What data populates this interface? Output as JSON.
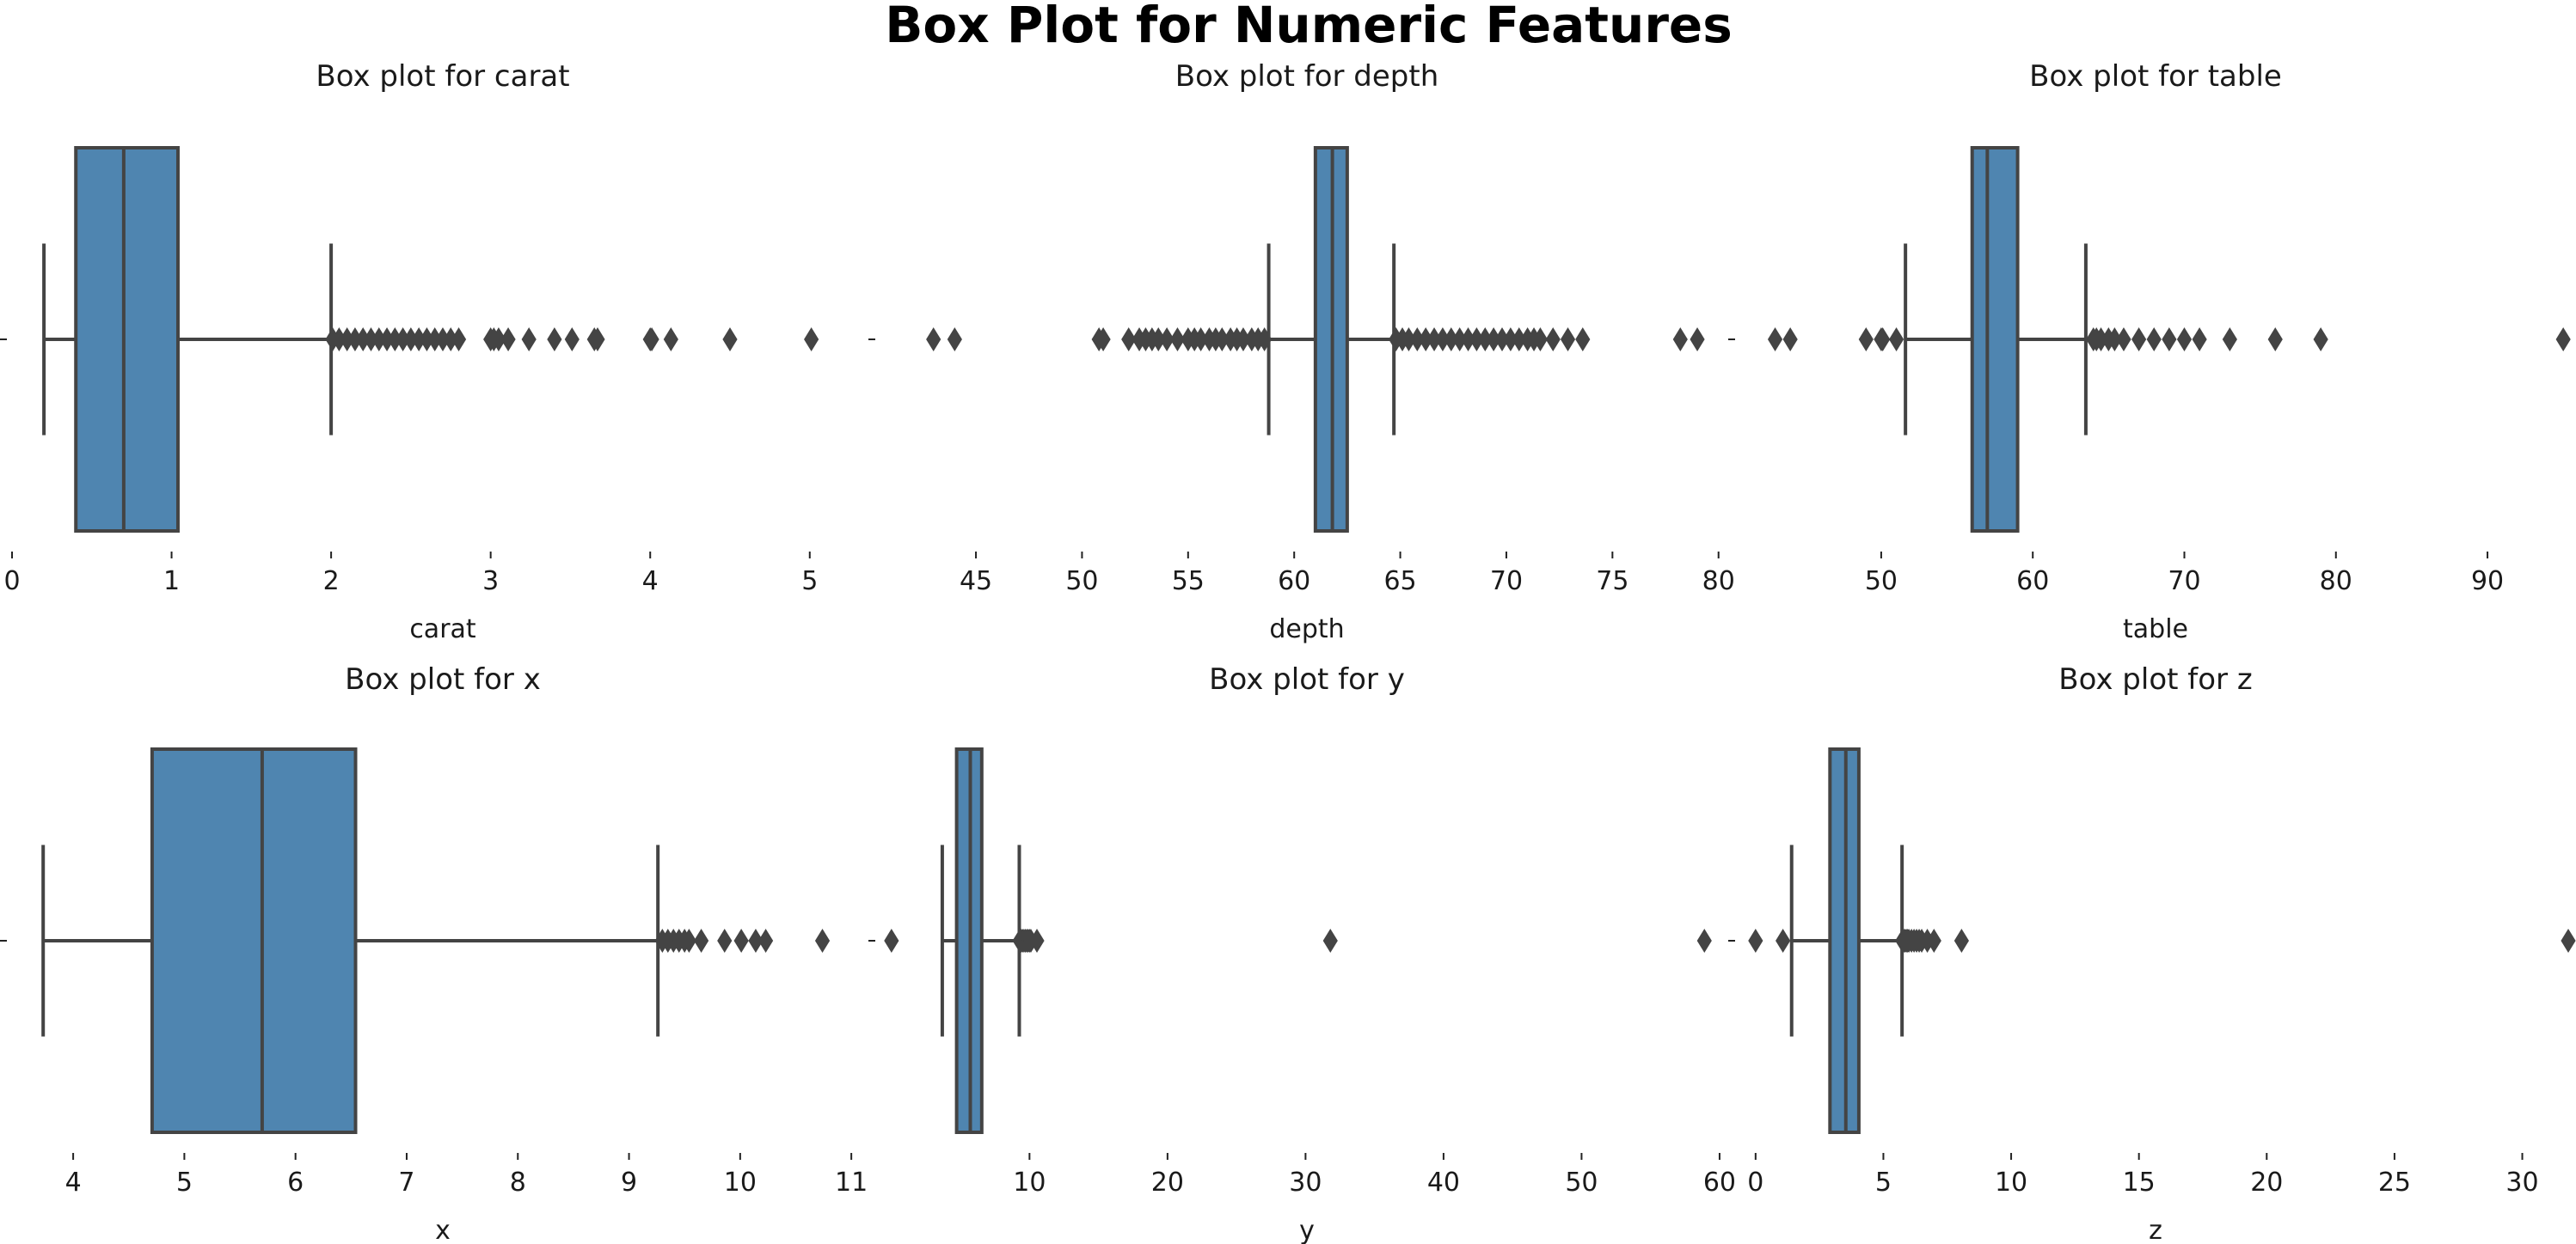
{
  "title": "Box Plot for Numeric Features",
  "style": {
    "box_color": "#4f85b0",
    "line_color": "#444444"
  },
  "chart_data": [
    {
      "type": "box",
      "orientation": "horizontal",
      "title": "Box plot for carat",
      "xlabel": "carat",
      "xlim": [
        0,
        5.4
      ],
      "ticks": [
        0,
        1,
        2,
        3,
        4,
        5
      ],
      "whisker_low": 0.2,
      "q1": 0.4,
      "median": 0.7,
      "q3": 1.04,
      "whisker_high": 2.0,
      "outliers": [
        2.01,
        2.05,
        2.1,
        2.15,
        2.2,
        2.25,
        2.3,
        2.35,
        2.4,
        2.45,
        2.5,
        2.55,
        2.6,
        2.65,
        2.7,
        2.75,
        2.8,
        3.0,
        3.02,
        3.05,
        3.11,
        3.24,
        3.4,
        3.51,
        3.65,
        3.67,
        4.0,
        4.01,
        4.13,
        4.5,
        5.01
      ]
    },
    {
      "type": "box",
      "orientation": "horizontal",
      "title": "Box plot for depth",
      "xlabel": "depth",
      "xlim": [
        40.5,
        80.7
      ],
      "ticks": [
        45,
        50,
        55,
        60,
        65,
        70,
        75,
        80
      ],
      "whisker_low": 58.8,
      "q1": 61.0,
      "median": 61.8,
      "q3": 62.5,
      "whisker_high": 64.7,
      "outliers": [
        43.0,
        44.0,
        50.8,
        51.0,
        52.2,
        52.7,
        53.0,
        53.3,
        53.6,
        54.0,
        54.5,
        55.0,
        55.3,
        55.6,
        56.0,
        56.3,
        56.6,
        57.0,
        57.3,
        57.6,
        58.0,
        58.3,
        58.6,
        64.8,
        65.1,
        65.4,
        65.8,
        66.2,
        66.6,
        67.0,
        67.4,
        67.8,
        68.2,
        68.6,
        69.0,
        69.4,
        69.8,
        70.2,
        70.6,
        71.0,
        71.3,
        71.6,
        72.2,
        72.9,
        73.6,
        78.2,
        79.0
      ]
    },
    {
      "type": "box",
      "orientation": "horizontal",
      "title": "Box plot for table",
      "xlabel": "table",
      "xlim": [
        40.7,
        95.5
      ],
      "ticks": [
        50,
        60,
        70,
        80,
        90
      ],
      "whisker_low": 51.6,
      "q1": 56.0,
      "median": 57.0,
      "q3": 59.0,
      "whisker_high": 63.5,
      "outliers": [
        43.0,
        44.0,
        49.0,
        50.0,
        50.1,
        51.0,
        64.0,
        64.2,
        64.5,
        65.0,
        65.4,
        66.0,
        67.0,
        68.0,
        69.0,
        70.0,
        71.0,
        73.0,
        76.0,
        79.0,
        95.0
      ]
    },
    {
      "type": "box",
      "orientation": "horizontal",
      "title": "Box plot for x",
      "xlabel": "x",
      "xlim": [
        3.45,
        11.2
      ],
      "ticks": [
        4,
        5,
        6,
        7,
        8,
        9,
        10,
        11
      ],
      "whisker_low": 3.73,
      "q1": 4.71,
      "median": 5.7,
      "q3": 6.54,
      "whisker_high": 9.26,
      "outliers": [
        9.3,
        9.35,
        9.4,
        9.45,
        9.5,
        9.54,
        9.65,
        9.86,
        10.01,
        10.14,
        10.23,
        10.74
      ]
    },
    {
      "type": "box",
      "orientation": "horizontal",
      "title": "Box plot for y",
      "xlabel": "y",
      "xlim": [
        -0.8,
        61
      ],
      "ticks": [
        10,
        20,
        30,
        40,
        50,
        60
      ],
      "whisker_low": 3.68,
      "q1": 4.72,
      "median": 5.71,
      "q3": 6.54,
      "whisker_high": 9.26,
      "outliers": [
        0.0,
        9.3,
        9.4,
        9.5,
        9.6,
        9.7,
        9.8,
        9.9,
        10.0,
        10.1,
        10.54,
        31.8,
        58.9
      ]
    },
    {
      "type": "box",
      "orientation": "horizontal",
      "title": "Box plot for z",
      "xlabel": "z",
      "xlim": [
        -0.6,
        31.9
      ],
      "ticks": [
        0,
        5,
        10,
        15,
        20,
        25,
        30
      ],
      "whisker_low": 1.41,
      "q1": 2.91,
      "median": 3.53,
      "q3": 4.04,
      "whisker_high": 5.73,
      "outliers": [
        0.0,
        1.07,
        5.75,
        5.8,
        5.85,
        5.9,
        5.95,
        6.0,
        6.1,
        6.2,
        6.3,
        6.4,
        6.5,
        6.72,
        6.98,
        8.06,
        31.8
      ]
    }
  ]
}
